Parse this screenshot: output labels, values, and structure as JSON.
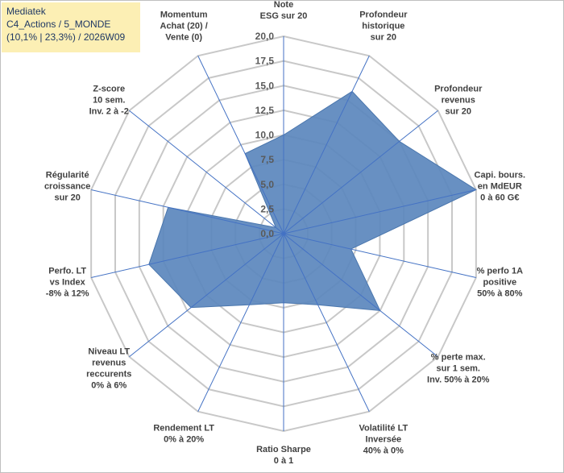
{
  "chart_data": {
    "type": "radar",
    "title_lines": [
      "Mediatek",
      "C4_Actions / 5_MONDE",
      "(10,1% | 23,3%) / 2026W09"
    ],
    "rmin": 0,
    "rmax": 20,
    "tick_step": 2.5,
    "tick_labels": [
      "0,0",
      "2,5",
      "5,0",
      "7,5",
      "10,0",
      "12,5",
      "15,0",
      "17,5",
      "20,0"
    ],
    "grid": true,
    "categories": [
      [
        "Note",
        "ESG sur 20"
      ],
      [
        "Profondeur",
        "historique",
        "sur 20"
      ],
      [
        "Profondeur",
        "revenus",
        "sur 20"
      ],
      [
        "Capi. bours.",
        "en MdEUR",
        "0 à 60 G€"
      ],
      [
        "% perfo 1A",
        "positive",
        "50% à 80%"
      ],
      [
        "% perte max.",
        "sur 1 sem.",
        "Inv. 50% à 20%"
      ],
      [
        "Volatilité LT",
        "Inversée",
        "40% à 0%"
      ],
      [
        "Ratio Sharpe",
        "0 à 1"
      ],
      [
        "Rendement LT",
        "0% à 20%"
      ],
      [
        "Niveau LT",
        "revenus",
        "reccurents",
        "0% à 6%"
      ],
      [
        "Perfo. LT",
        "vs Index",
        "-8% à 12%"
      ],
      [
        "Régularité",
        "croissance",
        "sur 20"
      ],
      [
        "Z-score",
        "10 sem.",
        "Inv. 2 à -2"
      ],
      [
        "Momentum",
        "Achat (20) /",
        "Vente (0)"
      ]
    ],
    "series": [
      {
        "values": [
          10,
          16,
          15,
          20,
          7,
          12.5,
          8,
          7,
          8,
          12,
          14,
          12,
          1,
          9
        ],
        "color": "#5b87bd"
      }
    ]
  }
}
